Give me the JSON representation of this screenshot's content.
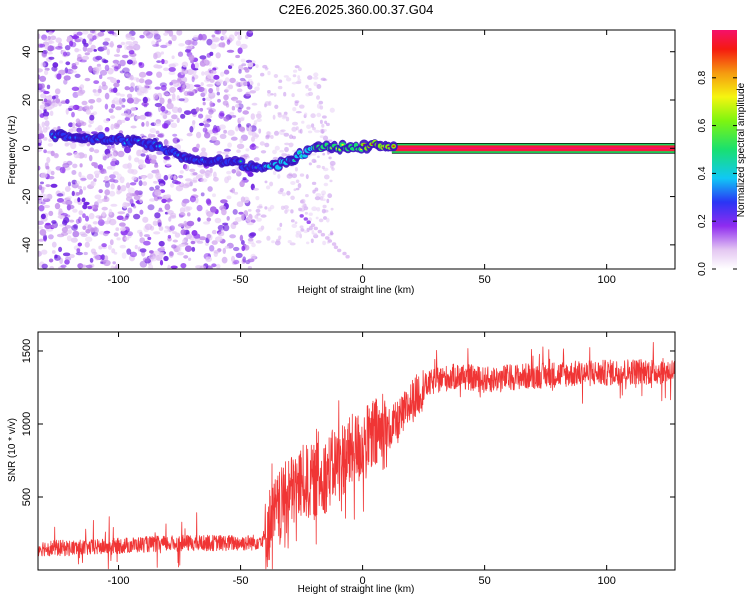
{
  "title": "C2E6.2025.360.00.37.G04",
  "chart_data": [
    {
      "type": "heatmap",
      "name": "spectrogram",
      "xlabel": "Height of straight line (km)",
      "ylabel": "Frequency (Hz)",
      "xlim": [
        -133,
        128
      ],
      "ylim": [
        -50,
        49
      ],
      "xticks": [
        -100,
        -50,
        0,
        50,
        100
      ],
      "yticks": [
        -40,
        -20,
        0,
        20,
        40
      ],
      "trace": {
        "x": [
          -128,
          -120,
          -113,
          -108,
          -100,
          -93,
          -86,
          -80,
          -74,
          -70,
          -64,
          -58,
          -52,
          -46,
          -42,
          -38,
          -34,
          -30,
          -26,
          -22,
          -18,
          -14,
          -10,
          -5,
          0,
          5,
          10,
          14,
          20,
          30,
          60,
          90,
          128
        ],
        "y": [
          5,
          5,
          4.5,
          4,
          3.5,
          2.5,
          1.5,
          -0.5,
          -3,
          -5,
          -5.5,
          -5.5,
          -6,
          -7.5,
          -8,
          -8,
          -6.5,
          -5,
          -3,
          -1.5,
          0,
          0.5,
          0.5,
          0.5,
          0.5,
          1.5,
          1,
          0.5,
          0,
          0,
          0,
          0,
          0
        ]
      },
      "colorbar": {
        "label": "Normalized spectral amplitude",
        "ticks": [
          0.0,
          0.2,
          0.4,
          0.6,
          0.8
        ],
        "tick_labels": [
          "0.0",
          "0.2",
          "0.4",
          "0.6",
          "0.8"
        ]
      }
    },
    {
      "type": "line",
      "name": "snr",
      "xlabel": "Height of straight line (km)",
      "ylabel": "SNR (10 * v/v)",
      "xlim": [
        -133,
        128
      ],
      "ylim": [
        0,
        1630
      ],
      "xticks": [
        -100,
        -50,
        0,
        50,
        100
      ],
      "yticks": [
        500,
        1000,
        1500
      ],
      "series": [
        {
          "name": "SNR",
          "color": "#f03535",
          "x": [
            -133,
            -120,
            -110,
            -100,
            -90,
            -80,
            -70,
            -60,
            -50,
            -44,
            -40,
            -38,
            -35,
            -30,
            -25,
            -20,
            -15,
            -10,
            -5,
            0,
            5,
            10,
            15,
            20,
            25,
            30,
            40,
            50,
            60,
            70,
            80,
            90,
            100,
            110,
            120,
            128
          ],
          "y": [
            150,
            150,
            155,
            165,
            175,
            180,
            185,
            185,
            185,
            190,
            220,
            320,
            400,
            520,
            600,
            600,
            650,
            750,
            800,
            850,
            920,
            950,
            1020,
            1150,
            1250,
            1300,
            1330,
            1300,
            1320,
            1330,
            1340,
            1345,
            1350,
            1360,
            1360,
            1360
          ]
        }
      ]
    }
  ]
}
